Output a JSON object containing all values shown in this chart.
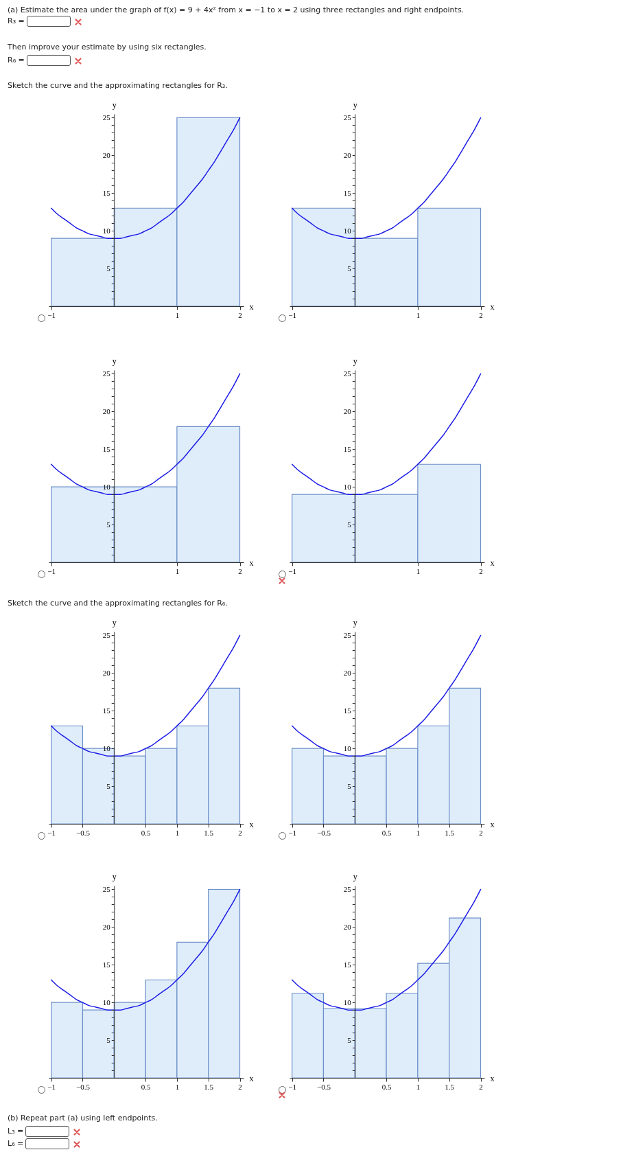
{
  "chart_data": [
    {
      "type": "other",
      "annotations": [
        "(a) Estimate the area under the graph of f(x) = 9 + 4x² from x = −1 to x = 2 using three rectangles and right endpoints.",
        "R₃ =",
        "Then improve your estimate by using six rectangles.",
        "R₆ =",
        "Sketch the curve and the approximating rectangles for R₃."
      ]
    },
    {
      "type": "histogram",
      "xlabel": "x",
      "ylabel": "y",
      "xlim": [
        -1.04,
        2.06
      ],
      "ylim": [
        0,
        25.5
      ],
      "xticks": [
        -1,
        1,
        2
      ],
      "yticks": [
        {
          "value": 1,
          "label": null
        },
        {
          "value": 2,
          "label": null
        },
        {
          "value": 3,
          "label": null
        },
        {
          "value": 4,
          "label": null
        },
        5,
        {
          "value": 6,
          "label": null
        },
        {
          "value": 7,
          "label": null
        },
        {
          "value": 8,
          "label": null
        },
        {
          "value": 9,
          "label": null
        },
        10,
        {
          "value": 11,
          "label": null
        },
        {
          "value": 12,
          "label": null
        },
        {
          "value": 13,
          "label": null
        },
        {
          "value": 14,
          "label": null
        },
        15,
        {
          "value": 16,
          "label": null
        },
        {
          "value": 17,
          "label": null
        },
        {
          "value": 18,
          "label": null
        },
        {
          "value": 19,
          "label": null
        },
        20,
        {
          "value": 21,
          "label": null
        },
        {
          "value": 22,
          "label": null
        },
        {
          "value": 23,
          "label": null
        },
        {
          "value": 24,
          "label": null
        },
        25
      ],
      "series": [
        {
          "type": "histogram",
          "color": "#dfedfb",
          "bins": [
            -1,
            0,
            1,
            2
          ],
          "values": [
            9,
            13,
            25
          ]
        },
        {
          "type": "line",
          "color": "#1c1ce6",
          "x": [
            -1,
            -0.9,
            -0.8,
            -0.7,
            -0.6,
            -0.5,
            -0.4,
            -0.3,
            -0.2,
            -0.1,
            0,
            0.1,
            0.2,
            0.3,
            0.4,
            0.5,
            0.6,
            0.7,
            0.8,
            0.9,
            1,
            1.1,
            1.2,
            1.3,
            1.4,
            1.5,
            1.6,
            1.7,
            1.8,
            1.9,
            2
          ],
          "values": [
            13,
            12.2,
            11.6,
            11.0,
            10.4,
            10,
            9.6,
            9.4,
            9.2,
            9.0,
            9,
            9.0,
            9.2,
            9.4,
            9.6,
            10,
            10.4,
            11.0,
            11.6,
            12.2,
            13,
            13.8,
            14.8,
            15.8,
            16.8,
            18,
            19.2,
            20.6,
            22.0,
            23.4,
            25
          ]
        }
      ]
    },
    {
      "type": "histogram",
      "xlabel": "x",
      "ylabel": "y",
      "xlim": [
        -1.04,
        2.06
      ],
      "ylim": [
        0,
        25.5
      ],
      "xticks": [
        -1,
        1,
        2
      ],
      "yticks": [
        {
          "value": 1,
          "label": null
        },
        {
          "value": 2,
          "label": null
        },
        {
          "value": 3,
          "label": null
        },
        {
          "value": 4,
          "label": null
        },
        5,
        {
          "value": 6,
          "label": null
        },
        {
          "value": 7,
          "label": null
        },
        {
          "value": 8,
          "label": null
        },
        {
          "value": 9,
          "label": null
        },
        10,
        {
          "value": 11,
          "label": null
        },
        {
          "value": 12,
          "label": null
        },
        {
          "value": 13,
          "label": null
        },
        {
          "value": 14,
          "label": null
        },
        15,
        {
          "value": 16,
          "label": null
        },
        {
          "value": 17,
          "label": null
        },
        {
          "value": 18,
          "label": null
        },
        {
          "value": 19,
          "label": null
        },
        20,
        {
          "value": 21,
          "label": null
        },
        {
          "value": 22,
          "label": null
        },
        {
          "value": 23,
          "label": null
        },
        {
          "value": 24,
          "label": null
        },
        25
      ],
      "series": [
        {
          "type": "histogram",
          "color": "#dfedfb",
          "bins": [
            -1,
            0,
            1,
            2
          ],
          "values": [
            13,
            9,
            13
          ]
        },
        {
          "type": "line",
          "color": "#1c1ce6",
          "x": [
            -1,
            -0.9,
            -0.8,
            -0.7,
            -0.6,
            -0.5,
            -0.4,
            -0.3,
            -0.2,
            -0.1,
            0,
            0.1,
            0.2,
            0.3,
            0.4,
            0.5,
            0.6,
            0.7,
            0.8,
            0.9,
            1,
            1.1,
            1.2,
            1.3,
            1.4,
            1.5,
            1.6,
            1.7,
            1.8,
            1.9,
            2
          ],
          "values": [
            13,
            12.2,
            11.6,
            11.0,
            10.4,
            10,
            9.6,
            9.4,
            9.2,
            9.0,
            9,
            9.0,
            9.2,
            9.4,
            9.6,
            10,
            10.4,
            11.0,
            11.6,
            12.2,
            13,
            13.8,
            14.8,
            15.8,
            16.8,
            18,
            19.2,
            20.6,
            22.0,
            23.4,
            25
          ]
        }
      ]
    },
    {
      "type": "histogram",
      "xlabel": "x",
      "ylabel": "y",
      "xlim": [
        -1.04,
        2.06
      ],
      "ylim": [
        0,
        25.5
      ],
      "xticks": [
        -1,
        1,
        2
      ],
      "yticks": [
        {
          "value": 1,
          "label": null
        },
        {
          "value": 2,
          "label": null
        },
        {
          "value": 3,
          "label": null
        },
        {
          "value": 4,
          "label": null
        },
        5,
        {
          "value": 6,
          "label": null
        },
        {
          "value": 7,
          "label": null
        },
        {
          "value": 8,
          "label": null
        },
        {
          "value": 9,
          "label": null
        },
        10,
        {
          "value": 11,
          "label": null
        },
        {
          "value": 12,
          "label": null
        },
        {
          "value": 13,
          "label": null
        },
        {
          "value": 14,
          "label": null
        },
        15,
        {
          "value": 16,
          "label": null
        },
        {
          "value": 17,
          "label": null
        },
        {
          "value": 18,
          "label": null
        },
        {
          "value": 19,
          "label": null
        },
        20,
        {
          "value": 21,
          "label": null
        },
        {
          "value": 22,
          "label": null
        },
        {
          "value": 23,
          "label": null
        },
        {
          "value": 24,
          "label": null
        },
        25
      ],
      "series": [
        {
          "type": "histogram",
          "color": "#dfedfb",
          "bins": [
            -1,
            0,
            1,
            2
          ],
          "values": [
            10,
            10,
            18
          ]
        },
        {
          "type": "line",
          "color": "#1c1ce6",
          "x": [
            -1,
            -0.9,
            -0.8,
            -0.7,
            -0.6,
            -0.5,
            -0.4,
            -0.3,
            -0.2,
            -0.1,
            0,
            0.1,
            0.2,
            0.3,
            0.4,
            0.5,
            0.6,
            0.7,
            0.8,
            0.9,
            1,
            1.1,
            1.2,
            1.3,
            1.4,
            1.5,
            1.6,
            1.7,
            1.8,
            1.9,
            2
          ],
          "values": [
            13,
            12.2,
            11.6,
            11.0,
            10.4,
            10,
            9.6,
            9.4,
            9.2,
            9.0,
            9,
            9.0,
            9.2,
            9.4,
            9.6,
            10,
            10.4,
            11.0,
            11.6,
            12.2,
            13,
            13.8,
            14.8,
            15.8,
            16.8,
            18,
            19.2,
            20.6,
            22.0,
            23.4,
            25
          ]
        }
      ]
    },
    {
      "type": "histogram",
      "xlabel": "x",
      "ylabel": "y",
      "xlim": [
        -1.04,
        2.06
      ],
      "ylim": [
        0,
        25.5
      ],
      "xticks": [
        -1,
        1,
        2
      ],
      "yticks": [
        {
          "value": 1,
          "label": null
        },
        {
          "value": 2,
          "label": null
        },
        {
          "value": 3,
          "label": null
        },
        {
          "value": 4,
          "label": null
        },
        5,
        {
          "value": 6,
          "label": null
        },
        {
          "value": 7,
          "label": null
        },
        {
          "value": 8,
          "label": null
        },
        {
          "value": 9,
          "label": null
        },
        10,
        {
          "value": 11,
          "label": null
        },
        {
          "value": 12,
          "label": null
        },
        {
          "value": 13,
          "label": null
        },
        {
          "value": 14,
          "label": null
        },
        15,
        {
          "value": 16,
          "label": null
        },
        {
          "value": 17,
          "label": null
        },
        {
          "value": 18,
          "label": null
        },
        {
          "value": 19,
          "label": null
        },
        20,
        {
          "value": 21,
          "label": null
        },
        {
          "value": 22,
          "label": null
        },
        {
          "value": 23,
          "label": null
        },
        {
          "value": 24,
          "label": null
        },
        25
      ],
      "series": [
        {
          "type": "histogram",
          "color": "#dfedfb",
          "bins": [
            -1,
            0,
            1,
            2
          ],
          "values": [
            9,
            9,
            13
          ]
        },
        {
          "type": "line",
          "color": "#1c1ce6",
          "x": [
            -1,
            -0.9,
            -0.8,
            -0.7,
            -0.6,
            -0.5,
            -0.4,
            -0.3,
            -0.2,
            -0.1,
            0,
            0.1,
            0.2,
            0.3,
            0.4,
            0.5,
            0.6,
            0.7,
            0.8,
            0.9,
            1,
            1.1,
            1.2,
            1.3,
            1.4,
            1.5,
            1.6,
            1.7,
            1.8,
            1.9,
            2
          ],
          "values": [
            13,
            12.2,
            11.6,
            11.0,
            10.4,
            10,
            9.6,
            9.4,
            9.2,
            9.0,
            9,
            9.0,
            9.2,
            9.4,
            9.6,
            10,
            10.4,
            11.0,
            11.6,
            12.2,
            13,
            13.8,
            14.8,
            15.8,
            16.8,
            18,
            19.2,
            20.6,
            22.0,
            23.4,
            25
          ]
        }
      ]
    },
    {
      "type": "other",
      "annotations": [
        "Sketch the curve and the approximating rectangles for R₆."
      ]
    },
    {
      "type": "histogram",
      "xlabel": "x",
      "ylabel": "y",
      "xlim": [
        -1.04,
        2.06
      ],
      "ylim": [
        0,
        25.5
      ],
      "xticks": [
        -1,
        -0.5,
        0.5,
        1,
        1.5,
        2
      ],
      "yticks": [
        {
          "value": 1,
          "label": null
        },
        {
          "value": 2,
          "label": null
        },
        {
          "value": 3,
          "label": null
        },
        {
          "value": 4,
          "label": null
        },
        5,
        {
          "value": 6,
          "label": null
        },
        {
          "value": 7,
          "label": null
        },
        {
          "value": 8,
          "label": null
        },
        {
          "value": 9,
          "label": null
        },
        10,
        {
          "value": 11,
          "label": null
        },
        {
          "value": 12,
          "label": null
        },
        {
          "value": 13,
          "label": null
        },
        {
          "value": 14,
          "label": null
        },
        15,
        {
          "value": 16,
          "label": null
        },
        {
          "value": 17,
          "label": null
        },
        {
          "value": 18,
          "label": null
        },
        {
          "value": 19,
          "label": null
        },
        20,
        {
          "value": 21,
          "label": null
        },
        {
          "value": 22,
          "label": null
        },
        {
          "value": 23,
          "label": null
        },
        {
          "value": 24,
          "label": null
        },
        25
      ],
      "series": [
        {
          "type": "histogram",
          "color": "#dfedfb",
          "bins": [
            -1,
            -0.5,
            0,
            0.5,
            1,
            1.5,
            2
          ],
          "values": [
            13,
            10,
            9,
            10,
            13,
            18
          ]
        },
        {
          "type": "line",
          "color": "#1c1ce6",
          "x": [
            -1,
            -0.9,
            -0.8,
            -0.7,
            -0.6,
            -0.5,
            -0.4,
            -0.3,
            -0.2,
            -0.1,
            0,
            0.1,
            0.2,
            0.3,
            0.4,
            0.5,
            0.6,
            0.7,
            0.8,
            0.9,
            1,
            1.1,
            1.2,
            1.3,
            1.4,
            1.5,
            1.6,
            1.7,
            1.8,
            1.9,
            2
          ],
          "values": [
            13,
            12.2,
            11.6,
            11.0,
            10.4,
            10,
            9.6,
            9.4,
            9.2,
            9.0,
            9,
            9.0,
            9.2,
            9.4,
            9.6,
            10,
            10.4,
            11.0,
            11.6,
            12.2,
            13,
            13.8,
            14.8,
            15.8,
            16.8,
            18,
            19.2,
            20.6,
            22.0,
            23.4,
            25
          ]
        }
      ]
    },
    {
      "type": "histogram",
      "xlabel": "x",
      "ylabel": "y",
      "xlim": [
        -1.04,
        2.06
      ],
      "ylim": [
        0,
        25.5
      ],
      "xticks": [
        -1,
        -0.5,
        0.5,
        1,
        1.5,
        2
      ],
      "yticks": [
        {
          "value": 1,
          "label": null
        },
        {
          "value": 2,
          "label": null
        },
        {
          "value": 3,
          "label": null
        },
        {
          "value": 4,
          "label": null
        },
        5,
        {
          "value": 6,
          "label": null
        },
        {
          "value": 7,
          "label": null
        },
        {
          "value": 8,
          "label": null
        },
        {
          "value": 9,
          "label": null
        },
        10,
        {
          "value": 11,
          "label": null
        },
        {
          "value": 12,
          "label": null
        },
        {
          "value": 13,
          "label": null
        },
        {
          "value": 14,
          "label": null
        },
        15,
        {
          "value": 16,
          "label": null
        },
        {
          "value": 17,
          "label": null
        },
        {
          "value": 18,
          "label": null
        },
        {
          "value": 19,
          "label": null
        },
        20,
        {
          "value": 21,
          "label": null
        },
        {
          "value": 22,
          "label": null
        },
        {
          "value": 23,
          "label": null
        },
        {
          "value": 24,
          "label": null
        },
        25
      ],
      "series": [
        {
          "type": "histogram",
          "color": "#dfedfb",
          "bins": [
            -1,
            -0.5,
            0,
            0.5,
            1,
            1.5,
            2
          ],
          "values": [
            10,
            9,
            9,
            10,
            13,
            18
          ]
        },
        {
          "type": "line",
          "color": "#1c1ce6",
          "x": [
            -1,
            -0.9,
            -0.8,
            -0.7,
            -0.6,
            -0.5,
            -0.4,
            -0.3,
            -0.2,
            -0.1,
            0,
            0.1,
            0.2,
            0.3,
            0.4,
            0.5,
            0.6,
            0.7,
            0.8,
            0.9,
            1,
            1.1,
            1.2,
            1.3,
            1.4,
            1.5,
            1.6,
            1.7,
            1.8,
            1.9,
            2
          ],
          "values": [
            13,
            12.2,
            11.6,
            11.0,
            10.4,
            10,
            9.6,
            9.4,
            9.2,
            9.0,
            9,
            9.0,
            9.2,
            9.4,
            9.6,
            10,
            10.4,
            11.0,
            11.6,
            12.2,
            13,
            13.8,
            14.8,
            15.8,
            16.8,
            18,
            19.2,
            20.6,
            22.0,
            23.4,
            25
          ]
        }
      ]
    },
    {
      "type": "histogram",
      "xlabel": "x",
      "ylabel": "y",
      "xlim": [
        -1.04,
        2.06
      ],
      "ylim": [
        0,
        25.5
      ],
      "xticks": [
        -1,
        -0.5,
        0.5,
        1,
        1.5,
        2
      ],
      "yticks": [
        {
          "value": 1,
          "label": null
        },
        {
          "value": 2,
          "label": null
        },
        {
          "value": 3,
          "label": null
        },
        {
          "value": 4,
          "label": null
        },
        5,
        {
          "value": 6,
          "label": null
        },
        {
          "value": 7,
          "label": null
        },
        {
          "value": 8,
          "label": null
        },
        {
          "value": 9,
          "label": null
        },
        10,
        {
          "value": 11,
          "label": null
        },
        {
          "value": 12,
          "label": null
        },
        {
          "value": 13,
          "label": null
        },
        {
          "value": 14,
          "label": null
        },
        15,
        {
          "value": 16,
          "label": null
        },
        {
          "value": 17,
          "label": null
        },
        {
          "value": 18,
          "label": null
        },
        {
          "value": 19,
          "label": null
        },
        20,
        {
          "value": 21,
          "label": null
        },
        {
          "value": 22,
          "label": null
        },
        {
          "value": 23,
          "label": null
        },
        {
          "value": 24,
          "label": null
        },
        25
      ],
      "series": [
        {
          "type": "histogram",
          "color": "#dfedfb",
          "bins": [
            -1,
            -0.5,
            0,
            0.5,
            1,
            1.5,
            2
          ],
          "values": [
            10,
            9,
            10,
            13,
            18,
            25
          ]
        },
        {
          "type": "line",
          "color": "#1c1ce6",
          "x": [
            -1,
            -0.9,
            -0.8,
            -0.7,
            -0.6,
            -0.5,
            -0.4,
            -0.3,
            -0.2,
            -0.1,
            0,
            0.1,
            0.2,
            0.3,
            0.4,
            0.5,
            0.6,
            0.7,
            0.8,
            0.9,
            1,
            1.1,
            1.2,
            1.3,
            1.4,
            1.5,
            1.6,
            1.7,
            1.8,
            1.9,
            2
          ],
          "values": [
            13,
            12.2,
            11.6,
            11.0,
            10.4,
            10,
            9.6,
            9.4,
            9.2,
            9.0,
            9,
            9.0,
            9.2,
            9.4,
            9.6,
            10,
            10.4,
            11.0,
            11.6,
            12.2,
            13,
            13.8,
            14.8,
            15.8,
            16.8,
            18,
            19.2,
            20.6,
            22.0,
            23.4,
            25
          ]
        }
      ]
    },
    {
      "type": "histogram",
      "xlabel": "x",
      "ylabel": "y",
      "xlim": [
        -1.04,
        2.06
      ],
      "ylim": [
        0,
        25.5
      ],
      "xticks": [
        -1,
        -0.5,
        0.5,
        1,
        1.5,
        2
      ],
      "yticks": [
        {
          "value": 1,
          "label": null
        },
        {
          "value": 2,
          "label": null
        },
        {
          "value": 3,
          "label": null
        },
        {
          "value": 4,
          "label": null
        },
        5,
        {
          "value": 6,
          "label": null
        },
        {
          "value": 7,
          "label": null
        },
        {
          "value": 8,
          "label": null
        },
        {
          "value": 9,
          "label": null
        },
        10,
        {
          "value": 11,
          "label": null
        },
        {
          "value": 12,
          "label": null
        },
        {
          "value": 13,
          "label": null
        },
        {
          "value": 14,
          "label": null
        },
        15,
        {
          "value": 16,
          "label": null
        },
        {
          "value": 17,
          "label": null
        },
        {
          "value": 18,
          "label": null
        },
        {
          "value": 19,
          "label": null
        },
        20,
        {
          "value": 21,
          "label": null
        },
        {
          "value": 22,
          "label": null
        },
        {
          "value": 23,
          "label": null
        },
        {
          "value": 24,
          "label": null
        },
        25
      ],
      "series": [
        {
          "type": "histogram",
          "color": "#dfedfb",
          "bins": [
            -1,
            -0.5,
            0,
            0.5,
            1,
            1.5,
            2
          ],
          "values": [
            11.2,
            9.2,
            9.2,
            11.2,
            15.2,
            21.2
          ]
        },
        {
          "type": "line",
          "color": "#1c1ce6",
          "x": [
            -1,
            -0.9,
            -0.8,
            -0.7,
            -0.6,
            -0.5,
            -0.4,
            -0.3,
            -0.2,
            -0.1,
            0,
            0.1,
            0.2,
            0.3,
            0.4,
            0.5,
            0.6,
            0.7,
            0.8,
            0.9,
            1,
            1.1,
            1.2,
            1.3,
            1.4,
            1.5,
            1.6,
            1.7,
            1.8,
            1.9,
            2
          ],
          "values": [
            13,
            12.2,
            11.6,
            11.0,
            10.4,
            10,
            9.6,
            9.4,
            9.2,
            9.0,
            9,
            9.0,
            9.2,
            9.4,
            9.6,
            10,
            10.4,
            11.0,
            11.6,
            12.2,
            13,
            13.8,
            14.8,
            15.8,
            16.8,
            18,
            19.2,
            20.6,
            22.0,
            23.4,
            25
          ]
        }
      ]
    },
    {
      "type": "other",
      "annotations": [
        "(b) Repeat part (a) using left endpoints.",
        "L₃ =",
        "L₆ ="
      ]
    }
  ]
}
